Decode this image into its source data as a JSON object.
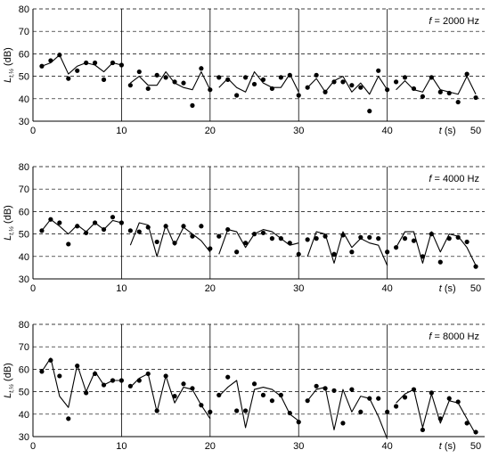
{
  "chart_data": [
    {
      "type": "scatter",
      "panel_label": "f = 2000 Hz",
      "annotation_parts": {
        "var": "f",
        "rest": " = 2000 Hz"
      },
      "ylabel_parts": {
        "main": "L",
        "sub": "t,½",
        "unit": " (dB)"
      },
      "xlabel": "t (s)",
      "xlim": [
        0,
        51
      ],
      "ylim": [
        30,
        80
      ],
      "xticks": [
        0,
        10,
        20,
        30,
        40,
        50
      ],
      "yticks": [
        30,
        40,
        50,
        60,
        70,
        80
      ],
      "grid": "horizontal-dashed",
      "segment_boundaries": [
        10,
        20,
        30,
        40
      ],
      "series": [
        {
          "kind": "points",
          "x": [
            1,
            2,
            3,
            4,
            5,
            6,
            7,
            8,
            9,
            10,
            11,
            12,
            13,
            14,
            15,
            16,
            17,
            18,
            19,
            20,
            21,
            22,
            23,
            24,
            25,
            26,
            27,
            28,
            29,
            30,
            31,
            32,
            33,
            34,
            35,
            36,
            37,
            38,
            39,
            40,
            41,
            42,
            43,
            44,
            45,
            46,
            47,
            48,
            49,
            50
          ],
          "y": [
            54.5,
            57,
            59.5,
            49,
            52.5,
            56,
            56,
            48.5,
            56,
            55,
            46,
            52,
            44.5,
            50.5,
            49.5,
            47.5,
            47,
            37,
            53.5,
            44,
            49.5,
            48.5,
            41.5,
            49.5,
            46.5,
            48.5,
            44.5,
            49.5,
            50.5,
            41.5,
            45,
            50.5,
            43,
            47.5,
            47.5,
            46,
            45,
            34.5,
            52.5,
            44,
            47.5,
            49.5,
            44.5,
            41,
            49.5,
            43,
            42.5,
            38.5,
            51,
            40.5
          ]
        },
        {
          "kind": "line",
          "segments": [
            {
              "x": [
                1,
                2,
                3,
                4,
                5,
                6,
                7,
                8,
                9,
                10
              ],
              "y": [
                54.5,
                56,
                59.5,
                51,
                54.5,
                56,
                55,
                52,
                56,
                55
              ]
            },
            {
              "x": [
                11,
                12,
                13,
                14,
                15,
                16,
                17,
                18,
                19,
                20
              ],
              "y": [
                47,
                50,
                46,
                46,
                52,
                47,
                45,
                44,
                52,
                44
              ]
            },
            {
              "x": [
                21,
                22,
                23,
                24,
                25,
                26,
                27,
                28,
                29,
                30
              ],
              "y": [
                45,
                49,
                45,
                43,
                52,
                47,
                45,
                45,
                51,
                43
              ]
            },
            {
              "x": [
                31,
                32,
                33,
                34,
                35,
                36,
                37,
                38,
                39,
                40
              ],
              "y": [
                45,
                49,
                43,
                48,
                50,
                43,
                47,
                42,
                50,
                44
              ]
            },
            {
              "x": [
                41,
                42,
                43,
                44,
                45,
                46,
                47,
                48,
                49,
                50
              ],
              "y": [
                44,
                48,
                44,
                43,
                50,
                44,
                43,
                42,
                50,
                42
              ]
            }
          ]
        }
      ]
    },
    {
      "type": "scatter",
      "panel_label": "f = 4000 Hz",
      "annotation_parts": {
        "var": "f",
        "rest": " = 4000 Hz"
      },
      "ylabel_parts": {
        "main": "L",
        "sub": "t,½",
        "unit": " (dB)"
      },
      "xlabel": "t (s)",
      "xlim": [
        0,
        51
      ],
      "ylim": [
        30,
        80
      ],
      "xticks": [
        0,
        10,
        20,
        30,
        40,
        50
      ],
      "yticks": [
        30,
        40,
        50,
        60,
        70,
        80
      ],
      "grid": "horizontal-dashed",
      "segment_boundaries": [
        10,
        20,
        30,
        40
      ],
      "series": [
        {
          "kind": "points",
          "x": [
            1,
            2,
            3,
            4,
            5,
            6,
            7,
            8,
            9,
            10,
            11,
            12,
            13,
            14,
            15,
            16,
            17,
            18,
            19,
            20,
            21,
            22,
            23,
            24,
            25,
            26,
            27,
            28,
            29,
            30,
            31,
            32,
            33,
            34,
            35,
            36,
            37,
            38,
            39,
            40,
            41,
            42,
            43,
            44,
            45,
            46,
            47,
            48,
            49,
            50
          ],
          "y": [
            51.5,
            56.5,
            55,
            45.5,
            53.5,
            50.5,
            55,
            52,
            57.5,
            55,
            51.5,
            51,
            53,
            46.5,
            53.5,
            46,
            53.5,
            49,
            53.5,
            43.5,
            49,
            52,
            42,
            46,
            50,
            50.5,
            48,
            48,
            46,
            41,
            47.5,
            48,
            49,
            41,
            49.5,
            42,
            48.5,
            48.5,
            48,
            42,
            44,
            48,
            47,
            40,
            50,
            37.5,
            48,
            48.5,
            46.5,
            35.5
          ]
        },
        {
          "kind": "line",
          "segments": [
            {
              "x": [
                1,
                2,
                3,
                4,
                5,
                6,
                7,
                8,
                9,
                10
              ],
              "y": [
                51.5,
                56.5,
                53.5,
                50,
                54,
                51,
                55,
                52,
                56,
                55
              ]
            },
            {
              "x": [
                11,
                12,
                13,
                14,
                15,
                16,
                17,
                18,
                19,
                20
              ],
              "y": [
                45,
                55,
                54,
                40,
                54,
                45,
                53,
                50,
                47,
                42
              ]
            },
            {
              "x": [
                21,
                22,
                23,
                24,
                25,
                26,
                27,
                28,
                29,
                30
              ],
              "y": [
                41,
                52,
                51,
                44,
                50,
                52,
                51,
                48,
                45,
                46
              ]
            },
            {
              "x": [
                31,
                32,
                33,
                34,
                35,
                36,
                37,
                38,
                39,
                40
              ],
              "y": [
                40,
                51,
                50,
                37,
                51,
                44,
                48,
                46,
                45,
                36
              ]
            },
            {
              "x": [
                41,
                42,
                43,
                44,
                45,
                46,
                47,
                48,
                49,
                50
              ],
              "y": [
                44,
                51,
                51,
                37,
                51,
                42,
                50,
                49,
                44,
                36
              ]
            }
          ]
        }
      ]
    },
    {
      "type": "scatter",
      "panel_label": "f = 8000 Hz",
      "annotation_parts": {
        "var": "f",
        "rest": " = 8000 Hz"
      },
      "ylabel_parts": {
        "main": "L",
        "sub": "t,½",
        "unit": " (dB)"
      },
      "xlabel": "t (s)",
      "xlim": [
        0,
        51
      ],
      "ylim": [
        30,
        80
      ],
      "xticks": [
        0,
        10,
        20,
        30,
        40,
        50
      ],
      "yticks": [
        30,
        40,
        50,
        60,
        70,
        80
      ],
      "grid": "horizontal-dashed",
      "segment_boundaries": [
        10,
        20,
        30,
        40
      ],
      "series": [
        {
          "kind": "points",
          "x": [
            1,
            2,
            3,
            4,
            5,
            6,
            7,
            8,
            9,
            10,
            11,
            12,
            13,
            14,
            15,
            16,
            17,
            18,
            19,
            20,
            21,
            22,
            23,
            24,
            25,
            26,
            27,
            28,
            29,
            30,
            31,
            32,
            33,
            34,
            35,
            36,
            37,
            38,
            39,
            40,
            41,
            42,
            43,
            44,
            45,
            46,
            47,
            48,
            49,
            50
          ],
          "y": [
            59,
            64,
            57,
            38,
            61.5,
            49.5,
            58,
            53,
            55,
            55,
            52.5,
            55,
            58,
            41.5,
            57,
            48,
            53.5,
            51.5,
            44,
            41,
            48.5,
            56.5,
            41.5,
            41.5,
            53.5,
            48.5,
            46,
            48.5,
            40.5,
            36.5,
            46,
            52.5,
            51.5,
            50.5,
            36,
            51,
            41,
            47,
            47,
            41,
            43.5,
            47.5,
            51,
            33,
            49.5,
            38,
            47,
            45.5,
            36,
            32
          ]
        },
        {
          "kind": "line",
          "segments": [
            {
              "x": [
                1,
                2,
                3,
                4,
                5,
                6,
                7,
                8,
                9,
                10
              ],
              "y": [
                59,
                65,
                48,
                43,
                62,
                50,
                59,
                53,
                55,
                55
              ]
            },
            {
              "x": [
                11,
                12,
                13,
                14,
                15,
                16,
                17,
                18,
                19,
                20
              ],
              "y": [
                52,
                56,
                58,
                41,
                57,
                45,
                52,
                51,
                44,
                38
              ]
            },
            {
              "x": [
                21,
                22,
                23,
                24,
                25,
                26,
                27,
                28,
                29,
                30
              ],
              "y": [
                48,
                52,
                55,
                34,
                51,
                52,
                51,
                48,
                40,
                37
              ]
            },
            {
              "x": [
                31,
                32,
                33,
                34,
                35,
                36,
                37,
                38,
                39,
                40
              ],
              "y": [
                46,
                51,
                52,
                33,
                51,
                41,
                48,
                47,
                39,
                29
              ]
            },
            {
              "x": [
                41,
                42,
                43,
                44,
                45,
                46,
                47,
                48,
                49,
                50
              ],
              "y": [
                45,
                49,
                51,
                34,
                49,
                36,
                46,
                45,
                38,
                31
              ]
            }
          ]
        }
      ]
    }
  ]
}
